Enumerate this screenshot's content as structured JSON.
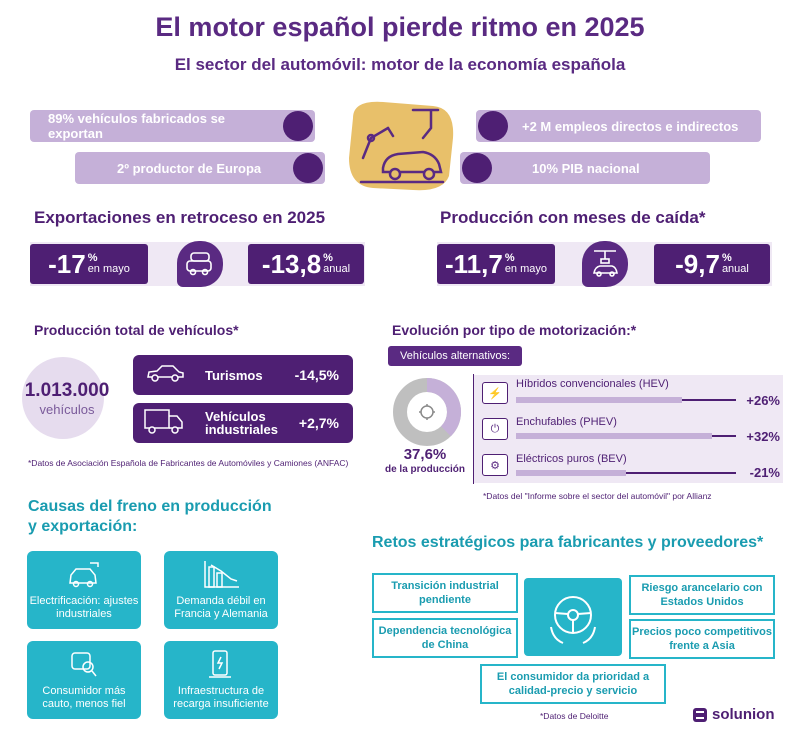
{
  "header": {
    "title": "El motor español pierde ritmo en 2025",
    "subtitle": "El sector del automóvil: motor de la economía española"
  },
  "facts": {
    "export_share": "89% vehículos fabricados se exportan",
    "producer_rank": "2º productor de Europa",
    "jobs": "+2 M empleos directos e indirectos",
    "gdp": "10% PIB nacional"
  },
  "exports": {
    "heading": "Exportaciones en retroceso en 2025",
    "may_value": "-17",
    "may_unit": "%",
    "may_label": "en mayo",
    "annual_value": "-13,8",
    "annual_unit": "%",
    "annual_label": "anual"
  },
  "production_months": {
    "heading": "Producción con meses de caída*",
    "may_value": "-11,7",
    "may_unit": "%",
    "may_label": "en mayo",
    "annual_value": "-9,7",
    "annual_unit": "%",
    "annual_label": "anual"
  },
  "total_production": {
    "heading": "Producción total de vehículos*",
    "total": "1.013.000",
    "total_unit": "vehículos",
    "rows": [
      {
        "label": "Turismos",
        "value": "-14,5%",
        "icon": "car-icon"
      },
      {
        "label": "Vehículos industriales",
        "value": "+2,7%",
        "icon": "truck-icon"
      }
    ],
    "note": "*Datos de Asociación Española de Fabricantes de Automóviles y Camiones (ANFAC)"
  },
  "motorization": {
    "heading": "Evolución por tipo de motorización:*",
    "tag": "Vehículos alternativos:",
    "share": "37,6%",
    "share_label": "de la producción",
    "share_fraction": 0.376,
    "rows": [
      {
        "label": "Híbridos convencionales  (HEV)",
        "value": "+26%",
        "icon": "hybrid-icon"
      },
      {
        "label": "Enchufables (PHEV)",
        "value": "+32%",
        "icon": "plug-icon"
      },
      {
        "label": "Eléctricos puros (BEV)",
        "value": "-21%",
        "icon": "battery-car-icon"
      }
    ],
    "note": "*Datos del \"Informe sobre el sector del automóvil\" por Allianz"
  },
  "causes": {
    "heading_line1": "Causas del freno en producción",
    "heading_line2": "y exportación:",
    "items": [
      {
        "label": "Electrificación: ajustes industriales",
        "icon": "electric-car-icon"
      },
      {
        "label": "Demanda débil en Francia y Alemania",
        "icon": "decline-chart-icon"
      },
      {
        "label": "Consumidor más cauto, menos fiel",
        "icon": "consumer-icon"
      },
      {
        "label": "Infraestructura de recarga insuficiente",
        "icon": "charger-icon"
      }
    ]
  },
  "challenges": {
    "heading": "Retos estratégicos para fabricantes y proveedores*",
    "items": [
      "Transición industrial pendiente",
      "Dependencia tecnológica de China",
      "Riesgo arancelario con Estados Unidos",
      "Precios poco competitivos frente a Asia",
      "El consumidor da prioridad a calidad-precio y servicio"
    ],
    "note": "*Datos de Deloitte"
  },
  "brand": {
    "name": "solunion"
  },
  "colors": {
    "purple": "#4e1f73",
    "light_purple": "#c5b0d8",
    "teal": "#26b5c9",
    "gold": "#e8c06a"
  }
}
